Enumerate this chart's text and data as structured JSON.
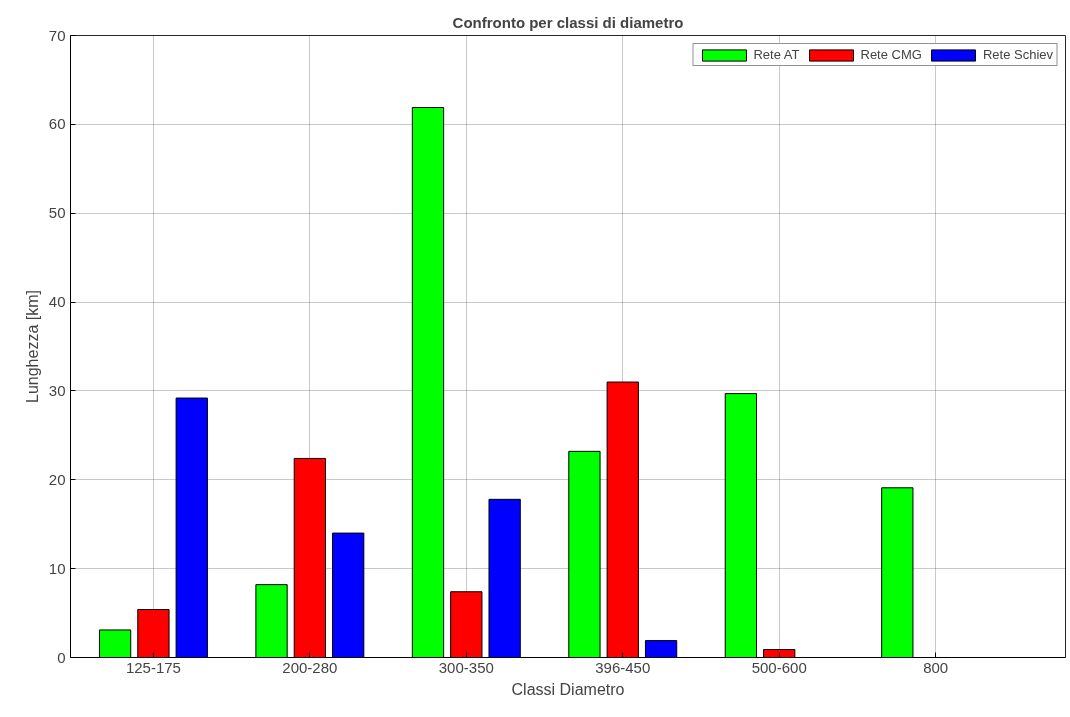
{
  "chart_data": {
    "type": "bar",
    "title": "Confronto per classi di diametro",
    "xlabel": "Classi Diametro",
    "ylabel": "Lunghezza [km]",
    "categories": [
      "125-175",
      "200-280",
      "300-350",
      "396-450",
      "500-600",
      "800"
    ],
    "series": [
      {
        "name": "Rete AT",
        "color": "#00ff00",
        "values": [
          3.1,
          8.2,
          61.9,
          23.2,
          29.7,
          19.1
        ]
      },
      {
        "name": "Rete CMG",
        "color": "#ff0000",
        "values": [
          5.4,
          22.4,
          7.4,
          31.0,
          0.9,
          0
        ]
      },
      {
        "name": "Rete Schiev",
        "color": "#0000ff",
        "values": [
          29.2,
          14.0,
          17.8,
          1.9,
          0,
          0
        ]
      }
    ],
    "ylim": [
      0,
      70
    ],
    "yticks": [
      0,
      10,
      20,
      30,
      40,
      50,
      60,
      70
    ],
    "grid": true,
    "legend": "top right"
  }
}
